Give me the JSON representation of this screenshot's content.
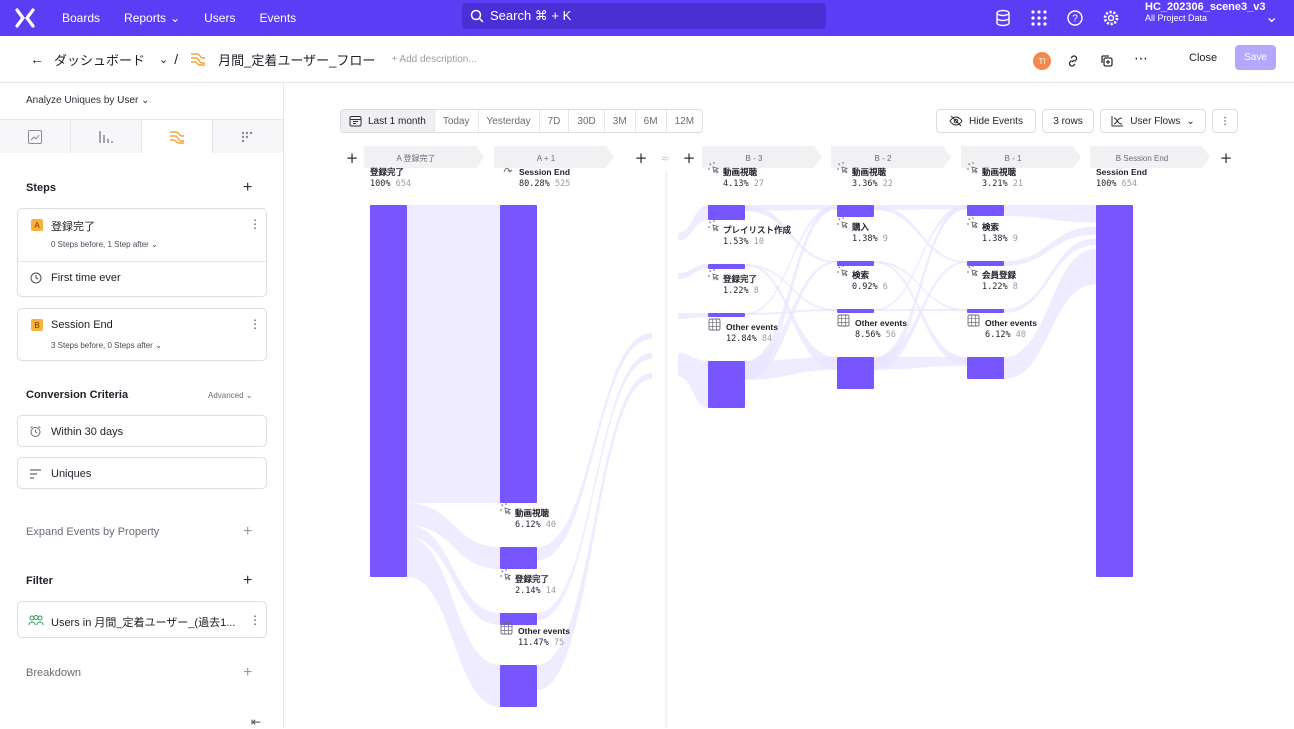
{
  "nav": {
    "items": [
      "Boards",
      "Reports",
      "Users",
      "Events"
    ],
    "search_placeholder": "Search ⌘ + K",
    "project_name": "HC_202306_scene3_v3",
    "project_sub": "All Project Data"
  },
  "header": {
    "breadcrumb": "ダッシュボード",
    "title": "月間_定着ユーザー_フロー",
    "description_placeholder": "+ Add description...",
    "avatar_initials": "TI",
    "close_label": "Close",
    "save_label": "Save"
  },
  "sidebar": {
    "analyze_prefix": "Analyze Uniques by",
    "analyze_value": "User",
    "steps_title": "Steps",
    "step_a": {
      "badge": "A",
      "name": "登録完了",
      "sub": "0 Steps before, 1 Step after",
      "extra": "First time ever"
    },
    "step_b": {
      "badge": "B",
      "name": "Session End",
      "sub": "3 Steps before, 0 Steps after"
    },
    "conversion_title": "Conversion Criteria",
    "advanced_label": "Advanced",
    "within_label": "Within 30 days",
    "uniques_label": "Uniques",
    "expand_label": "Expand Events by Property",
    "filter_title": "Filter",
    "filter_value": "Users in 月間_定着ユーザー_(過去1...",
    "breakdown_label": "Breakdown"
  },
  "toolbar": {
    "date_ranges": [
      "Last 1 month",
      "Today",
      "Yesterday",
      "7D",
      "30D",
      "3M",
      "6M",
      "12M"
    ],
    "hide_events": "Hide Events",
    "rows": "3 rows",
    "view": "User Flows"
  },
  "colors": {
    "accent": "#5b3df5",
    "bar": "#7856ff",
    "link": "#e9e6ff"
  },
  "flow": {
    "columns": [
      {
        "header": "A  登録完了",
        "nodes": [
          {
            "label": "登録完了",
            "pct": "100%",
            "count": "654",
            "icon": "none"
          }
        ]
      },
      {
        "header": "A + 1",
        "nodes": [
          {
            "label": "Session End",
            "pct": "80.28%",
            "count": "525",
            "icon": "session-end-icon"
          },
          {
            "label": "動画視聴",
            "pct": "6.12%",
            "count": "40",
            "icon": "click-icon"
          },
          {
            "label": "登録完了",
            "pct": "2.14%",
            "count": "14",
            "icon": "click-icon"
          },
          {
            "label": "Other events",
            "pct": "11.47%",
            "count": "75",
            "icon": "grid-icon"
          }
        ]
      },
      {
        "header": "B - 3",
        "nodes": [
          {
            "label": "動画視聴",
            "pct": "4.13%",
            "count": "27",
            "icon": "click-icon"
          },
          {
            "label": "プレイリスト作成",
            "pct": "1.53%",
            "count": "10",
            "icon": "click-icon"
          },
          {
            "label": "登録完了",
            "pct": "1.22%",
            "count": "8",
            "icon": "click-icon"
          },
          {
            "label": "Other events",
            "pct": "12.84%",
            "count": "84",
            "icon": "grid-icon"
          }
        ]
      },
      {
        "header": "B - 2",
        "nodes": [
          {
            "label": "動画視聴",
            "pct": "3.36%",
            "count": "22",
            "icon": "click-icon"
          },
          {
            "label": "購入",
            "pct": "1.38%",
            "count": "9",
            "icon": "click-icon"
          },
          {
            "label": "検索",
            "pct": "0.92%",
            "count": "6",
            "icon": "click-icon"
          },
          {
            "label": "Other events",
            "pct": "8.56%",
            "count": "56",
            "icon": "grid-icon"
          }
        ]
      },
      {
        "header": "B - 1",
        "nodes": [
          {
            "label": "動画視聴",
            "pct": "3.21%",
            "count": "21",
            "icon": "click-icon"
          },
          {
            "label": "検索",
            "pct": "1.38%",
            "count": "9",
            "icon": "click-icon"
          },
          {
            "label": "会員登録",
            "pct": "1.22%",
            "count": "8",
            "icon": "click-icon"
          },
          {
            "label": "Other events",
            "pct": "6.12%",
            "count": "40",
            "icon": "grid-icon"
          }
        ]
      },
      {
        "header": "B  Session End",
        "nodes": [
          {
            "label": "Session End",
            "pct": "100%",
            "count": "654",
            "icon": "none"
          }
        ]
      }
    ]
  }
}
